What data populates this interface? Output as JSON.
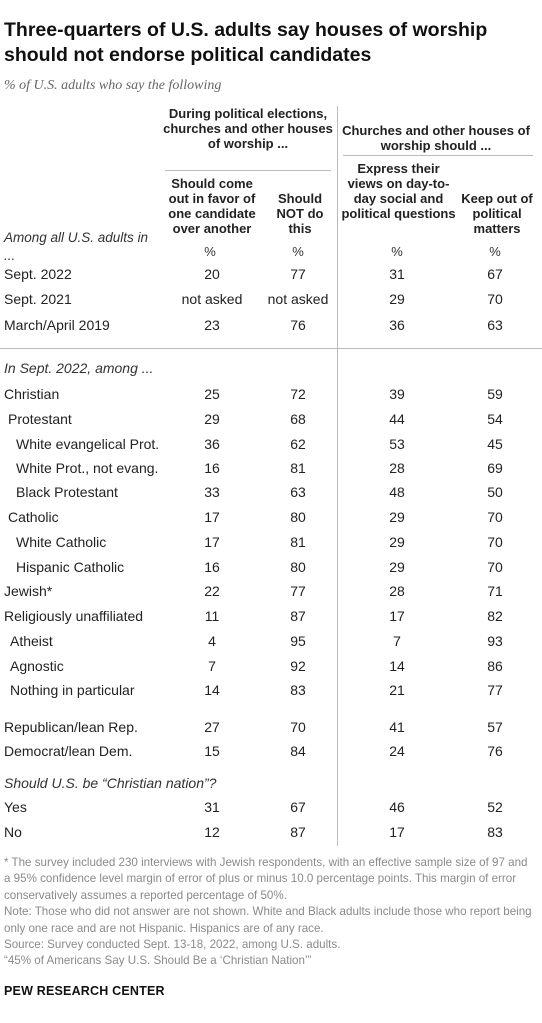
{
  "title": "Three-quarters of U.S. adults say houses of worship should not endorse political candidates",
  "subtitle": "% of U.S. adults who say the following",
  "group_left": "During political elections, churches and other houses of worship ...",
  "group_right": "Churches and other houses of worship should ...",
  "row_header": "Among all U.S. adults in ...",
  "columns": [
    "Should come out in favor of one candidate over another",
    "Should NOT do this",
    "Express their views on day-to-day social and political questions",
    "Keep out of political matters"
  ],
  "pct_symbol": "%",
  "section_sept2022": "In Sept. 2022, among ...",
  "section_christian_nation": "Should U.S. be “Christian nation”?",
  "chart_data": {
    "type": "table",
    "rows": [
      {
        "label": "Sept. 2022",
        "values": [
          "20",
          "77",
          "31",
          "67"
        ]
      },
      {
        "label": "Sept. 2021",
        "values": [
          "not asked",
          "not asked",
          "29",
          "70"
        ]
      },
      {
        "label": "March/April 2019",
        "values": [
          "23",
          "76",
          "36",
          "63"
        ]
      },
      {
        "label": "Christian",
        "values": [
          "25",
          "72",
          "39",
          "59"
        ]
      },
      {
        "label": "Protestant",
        "values": [
          "29",
          "68",
          "44",
          "54"
        ]
      },
      {
        "label": "White evangelical Prot.",
        "values": [
          "36",
          "62",
          "53",
          "45"
        ]
      },
      {
        "label": "White Prot., not evang.",
        "values": [
          "16",
          "81",
          "28",
          "69"
        ]
      },
      {
        "label": "Black Protestant",
        "values": [
          "33",
          "63",
          "48",
          "50"
        ]
      },
      {
        "label": "Catholic",
        "values": [
          "17",
          "80",
          "29",
          "70"
        ]
      },
      {
        "label": "White Catholic",
        "values": [
          "17",
          "81",
          "29",
          "70"
        ]
      },
      {
        "label": "Hispanic Catholic",
        "values": [
          "16",
          "80",
          "29",
          "70"
        ]
      },
      {
        "label": "Jewish*",
        "values": [
          "22",
          "77",
          "28",
          "71"
        ]
      },
      {
        "label": "Religiously unaffiliated",
        "values": [
          "11",
          "87",
          "17",
          "82"
        ]
      },
      {
        "label": "Atheist",
        "values": [
          "4",
          "95",
          "7",
          "93"
        ]
      },
      {
        "label": "Agnostic",
        "values": [
          "7",
          "92",
          "14",
          "86"
        ]
      },
      {
        "label": "Nothing in particular",
        "values": [
          "14",
          "83",
          "21",
          "77"
        ]
      },
      {
        "label": "Republican/lean Rep.",
        "values": [
          "27",
          "70",
          "41",
          "57"
        ]
      },
      {
        "label": "Democrat/lean Dem.",
        "values": [
          "15",
          "84",
          "24",
          "76"
        ]
      },
      {
        "label": "Yes",
        "values": [
          "31",
          "67",
          "46",
          "52"
        ]
      },
      {
        "label": "No",
        "values": [
          "12",
          "87",
          "17",
          "83"
        ]
      }
    ]
  },
  "notes": [
    "* The survey included 230 interviews with Jewish respondents, with an effective sample size of 97 and a 95% confidence level margin of error of plus or minus 10.0 percentage points. This margin of error conservatively assumes a reported percentage of 50%.",
    "Note: Those who did not answer are not shown. White and Black adults include those who report being only one race and are not Hispanic. Hispanics are of any race.",
    "Source: Survey conducted Sept. 13-18, 2022, among U.S. adults.",
    "“45% of Americans Say U.S. Should Be a ‘Christian Nation’”"
  ],
  "brand": "PEW RESEARCH CENTER"
}
